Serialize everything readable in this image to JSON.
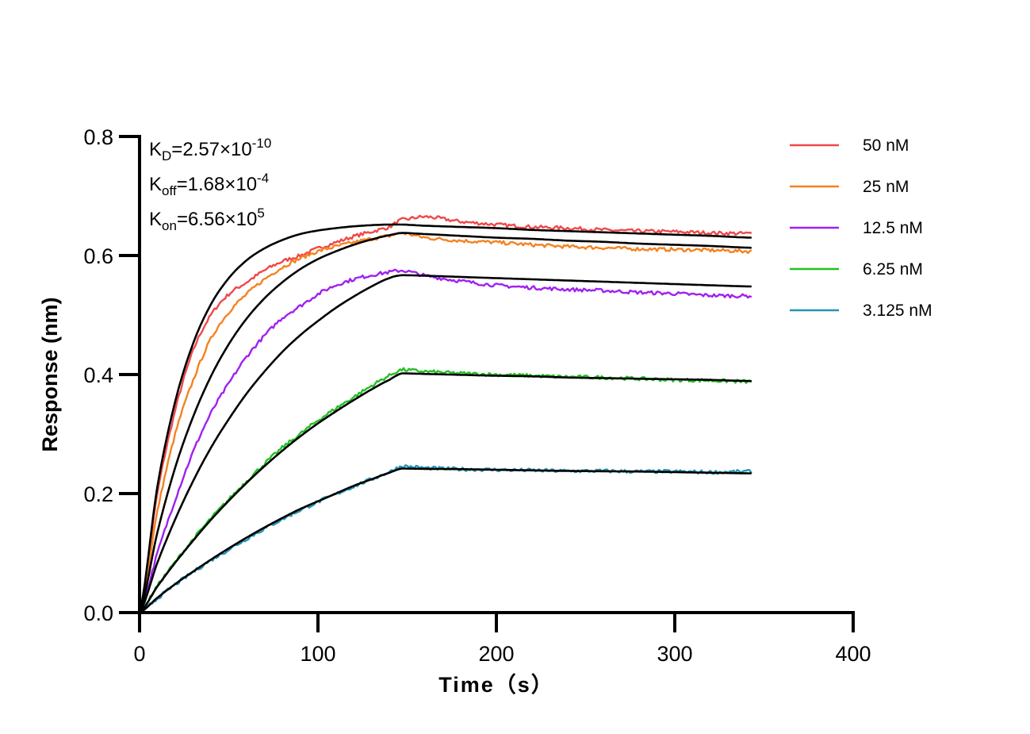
{
  "chart_data": {
    "type": "line",
    "title": "",
    "xlabel": "Time（s）",
    "ylabel": "Response (nm)",
    "xlim": [
      0,
      400
    ],
    "ylim": [
      0,
      0.8
    ],
    "xticks": [
      "0",
      "100",
      "200",
      "300",
      "400"
    ],
    "yticks": [
      "0.0",
      "0.2",
      "0.4",
      "0.6",
      "0.8"
    ],
    "grid": false,
    "legend_position": "right",
    "annotations": {
      "kd": {
        "label": "K",
        "sub": "D",
        "value": "=2.57×10",
        "exp": "-10"
      },
      "koff": {
        "label": "K",
        "sub": "off",
        "value": "=1.68×10",
        "exp": "-4"
      },
      "kon": {
        "label": "K",
        "sub": "on",
        "value": "=6.56×10",
        "exp": "5"
      }
    },
    "fit_color": "#000000",
    "x": [
      0,
      10,
      20,
      30,
      40,
      50,
      60,
      70,
      80,
      90,
      100,
      110,
      120,
      130,
      140,
      147,
      160,
      180,
      200,
      220,
      240,
      260,
      280,
      300,
      320,
      343
    ],
    "series": [
      {
        "name": "50 nM",
        "color": "#f04848",
        "data": [
          0,
          0.2,
          0.34,
          0.44,
          0.5,
          0.535,
          0.555,
          0.575,
          0.59,
          0.6,
          0.612,
          0.622,
          0.632,
          0.64,
          0.648,
          0.66,
          0.665,
          0.657,
          0.652,
          0.648,
          0.646,
          0.643,
          0.641,
          0.64,
          0.638,
          0.637
        ],
        "fit": [
          0,
          0.212,
          0.355,
          0.452,
          0.518,
          0.562,
          0.592,
          0.612,
          0.626,
          0.636,
          0.642,
          0.646,
          0.649,
          0.651,
          0.652,
          0.652,
          0.65,
          0.648,
          0.646,
          0.643,
          0.641,
          0.639,
          0.637,
          0.635,
          0.633,
          0.63
        ]
      },
      {
        "name": "25 nM",
        "color": "#f5821f",
        "data": [
          0,
          0.17,
          0.3,
          0.39,
          0.46,
          0.505,
          0.535,
          0.56,
          0.58,
          0.595,
          0.607,
          0.615,
          0.622,
          0.628,
          0.633,
          0.638,
          0.63,
          0.625,
          0.622,
          0.618,
          0.615,
          0.613,
          0.611,
          0.61,
          0.609,
          0.607
        ],
        "fit": [
          0,
          0.135,
          0.244,
          0.329,
          0.397,
          0.451,
          0.494,
          0.528,
          0.555,
          0.577,
          0.594,
          0.607,
          0.618,
          0.627,
          0.634,
          0.638,
          0.636,
          0.633,
          0.63,
          0.628,
          0.625,
          0.623,
          0.62,
          0.618,
          0.616,
          0.613
        ]
      },
      {
        "name": "12.5 nM",
        "color": "#a020f0",
        "data": [
          0,
          0.1,
          0.19,
          0.27,
          0.335,
          0.385,
          0.43,
          0.465,
          0.495,
          0.515,
          0.535,
          0.55,
          0.56,
          0.567,
          0.572,
          0.575,
          0.566,
          0.557,
          0.55,
          0.546,
          0.543,
          0.541,
          0.538,
          0.536,
          0.533,
          0.532
        ],
        "fit": [
          0,
          0.084,
          0.157,
          0.221,
          0.277,
          0.325,
          0.368,
          0.405,
          0.438,
          0.466,
          0.49,
          0.512,
          0.531,
          0.548,
          0.562,
          0.567,
          0.566,
          0.564,
          0.562,
          0.56,
          0.558,
          0.556,
          0.554,
          0.552,
          0.55,
          0.548
        ]
      },
      {
        "name": "6.25 nM",
        "color": "#22c022",
        "data": [
          0,
          0.045,
          0.085,
          0.123,
          0.158,
          0.19,
          0.221,
          0.25,
          0.277,
          0.3,
          0.323,
          0.343,
          0.362,
          0.381,
          0.398,
          0.408,
          0.405,
          0.402,
          0.4,
          0.398,
          0.396,
          0.395,
          0.393,
          0.391,
          0.39,
          0.388
        ],
        "fit": [
          0,
          0.044,
          0.084,
          0.121,
          0.156,
          0.188,
          0.218,
          0.246,
          0.272,
          0.296,
          0.318,
          0.338,
          0.357,
          0.375,
          0.391,
          0.402,
          0.401,
          0.3995,
          0.398,
          0.397,
          0.395,
          0.394,
          0.393,
          0.392,
          0.391,
          0.389
        ]
      },
      {
        "name": "3.125 nM",
        "color": "#2494b4",
        "data": [
          0,
          0.024,
          0.047,
          0.068,
          0.088,
          0.106,
          0.124,
          0.141,
          0.157,
          0.172,
          0.186,
          0.199,
          0.212,
          0.224,
          0.236,
          0.246,
          0.243,
          0.241,
          0.24,
          0.239,
          0.238,
          0.238,
          0.237,
          0.237,
          0.236,
          0.237
        ],
        "fit": [
          0,
          0.025,
          0.048,
          0.069,
          0.089,
          0.108,
          0.126,
          0.143,
          0.159,
          0.174,
          0.187,
          0.2,
          0.213,
          0.224,
          0.235,
          0.242,
          0.2415,
          0.241,
          0.24,
          0.239,
          0.238,
          0.2375,
          0.237,
          0.236,
          0.235,
          0.234
        ]
      }
    ]
  }
}
